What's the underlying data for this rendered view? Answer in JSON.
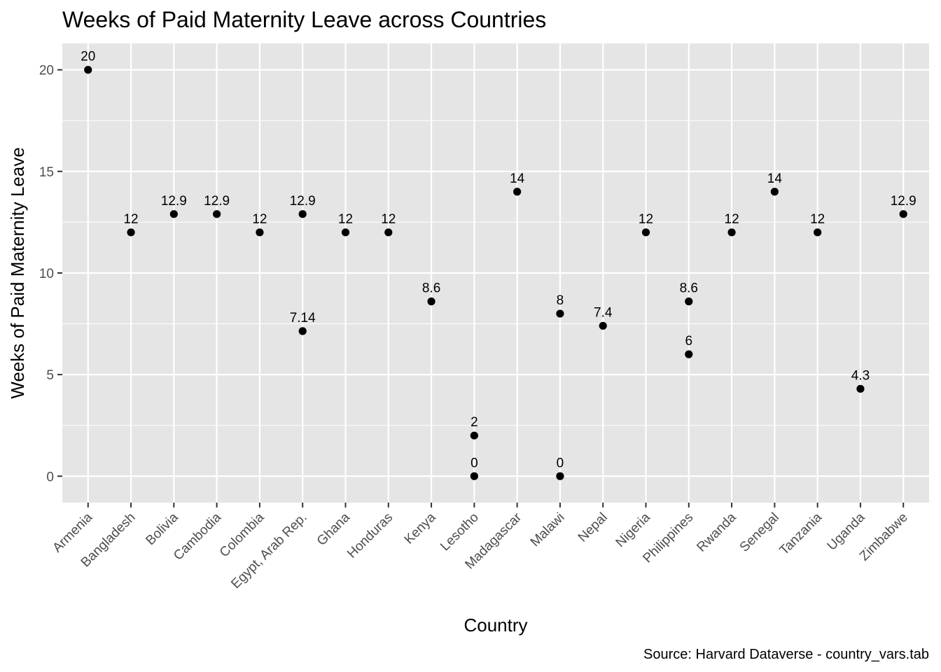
{
  "chart_data": {
    "type": "scatter",
    "title": "Weeks of Paid Maternity Leave across Countries",
    "xlabel": "Country",
    "ylabel": "Weeks of Paid Maternity Leave",
    "caption": "Source: Harvard Dataverse - country_vars.tab",
    "ylim": [
      -1.3,
      21.3
    ],
    "yticks": [
      0,
      5,
      10,
      15,
      20
    ],
    "grid": true,
    "categories": [
      "Armenia",
      "Bangladesh",
      "Bolivia",
      "Cambodia",
      "Colombia",
      "Egypt, Arab Rep.",
      "Ghana",
      "Honduras",
      "Kenya",
      "Lesotho",
      "Madagascar",
      "Malawi",
      "Nepal",
      "Nigeria",
      "Philippines",
      "Rwanda",
      "Senegal",
      "Tanzania",
      "Uganda",
      "Zimbabwe"
    ],
    "points": [
      {
        "x": "Armenia",
        "y": 20,
        "label": "20"
      },
      {
        "x": "Bangladesh",
        "y": 12,
        "label": "12"
      },
      {
        "x": "Bolivia",
        "y": 12.9,
        "label": "12.9"
      },
      {
        "x": "Cambodia",
        "y": 12.9,
        "label": "12.9"
      },
      {
        "x": "Colombia",
        "y": 12,
        "label": "12"
      },
      {
        "x": "Egypt, Arab Rep.",
        "y": 12.9,
        "label": "12.9"
      },
      {
        "x": "Egypt, Arab Rep.",
        "y": 7.14,
        "label": "7.14"
      },
      {
        "x": "Ghana",
        "y": 12,
        "label": "12"
      },
      {
        "x": "Honduras",
        "y": 12,
        "label": "12"
      },
      {
        "x": "Kenya",
        "y": 8.6,
        "label": "8.6"
      },
      {
        "x": "Lesotho",
        "y": 2,
        "label": "2"
      },
      {
        "x": "Lesotho",
        "y": 0,
        "label": "0"
      },
      {
        "x": "Madagascar",
        "y": 14,
        "label": "14"
      },
      {
        "x": "Malawi",
        "y": 8,
        "label": "8"
      },
      {
        "x": "Malawi",
        "y": 0,
        "label": "0"
      },
      {
        "x": "Nepal",
        "y": 7.4,
        "label": "7.4"
      },
      {
        "x": "Nigeria",
        "y": 12,
        "label": "12"
      },
      {
        "x": "Philippines",
        "y": 8.6,
        "label": "8.6"
      },
      {
        "x": "Philippines",
        "y": 6,
        "label": "6"
      },
      {
        "x": "Rwanda",
        "y": 12,
        "label": "12"
      },
      {
        "x": "Senegal",
        "y": 14,
        "label": "14"
      },
      {
        "x": "Tanzania",
        "y": 12,
        "label": "12"
      },
      {
        "x": "Uganda",
        "y": 4.3,
        "label": "4.3"
      },
      {
        "x": "Zimbabwe",
        "y": 12.9,
        "label": "12.9"
      }
    ],
    "colors": {
      "panel": "#e5e5e5",
      "grid": "#ffffff",
      "point": "#000000",
      "tick_text": "#4d4d4d",
      "tick_mark": "#333333"
    }
  }
}
